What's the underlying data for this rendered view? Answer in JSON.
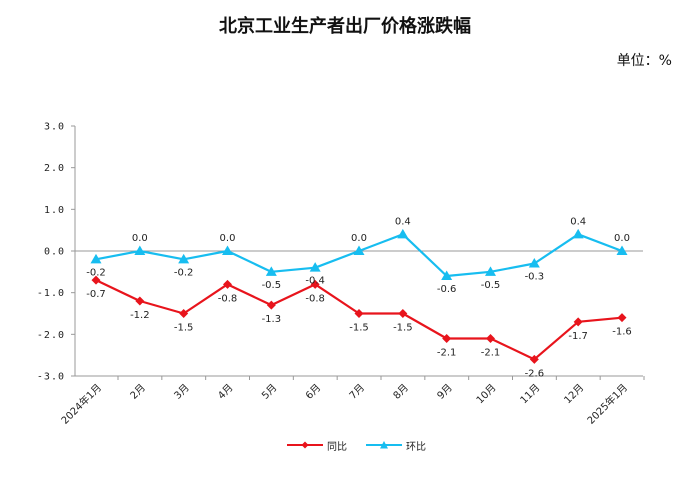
{
  "title": "北京工业生产者出厂价格涨跌幅",
  "unit": "单位：%",
  "chart_data": {
    "type": "line",
    "categories": [
      "2024年1月",
      "2月",
      "3月",
      "4月",
      "5月",
      "6月",
      "7月",
      "8月",
      "9月",
      "10月",
      "11月",
      "12月",
      "2025年1月"
    ],
    "ylim": [
      -3.0,
      3.0
    ],
    "yticks": [
      "3.0",
      "2.0",
      "1.0",
      "0.0",
      "-1.0",
      "-2.0",
      "-3.0"
    ],
    "grid": false,
    "legend": "bottom",
    "series": [
      {
        "name": "同比",
        "color": "#e8141c",
        "marker": "diamond",
        "values": [
          -0.7,
          -1.2,
          -1.5,
          -0.8,
          -1.3,
          -0.8,
          -1.5,
          -1.5,
          -2.1,
          -2.1,
          -2.6,
          -1.7,
          -1.6
        ],
        "labels": [
          "-0.7",
          "-1.2",
          "-1.5",
          "-0.8",
          "-1.3",
          "-0.8",
          "-1.5",
          "-1.5",
          "-2.1",
          "-2.1",
          "-2.6",
          "-1.7",
          "-1.6"
        ]
      },
      {
        "name": "环比",
        "color": "#17bdf0",
        "marker": "triangle",
        "values": [
          -0.2,
          0.0,
          -0.2,
          0.0,
          -0.5,
          -0.4,
          0.0,
          0.4,
          -0.6,
          -0.5,
          -0.3,
          0.4,
          0.0
        ],
        "labels": [
          "-0.2",
          "0.0",
          "-0.2",
          "0.0",
          "-0.5",
          "-0.4",
          "0.0",
          "0.4",
          "-0.6",
          "-0.5",
          "-0.3",
          "0.4",
          "0.0"
        ]
      }
    ]
  }
}
